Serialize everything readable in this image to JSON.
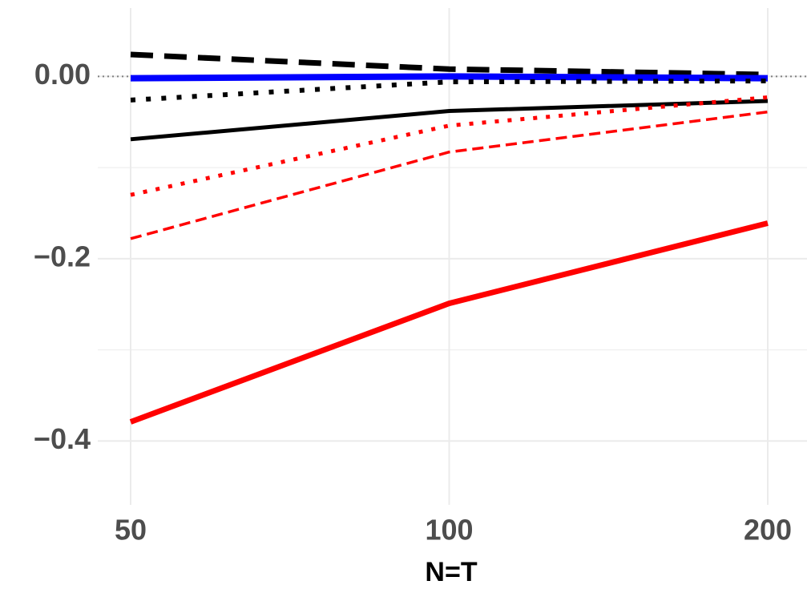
{
  "chart_data": {
    "type": "line",
    "x_label": "N=T",
    "categories": [
      "50",
      "100",
      "200"
    ],
    "ylim": [
      -0.47,
      0.075
    ],
    "yticks": [
      {
        "value": -0.4,
        "label": "−0.4"
      },
      {
        "value": -0.2,
        "label": "−0.2"
      },
      {
        "value": 0,
        "label": "0.00"
      }
    ],
    "y_minor_grid": [
      -0.3,
      -0.1
    ],
    "grid": true,
    "hline": 0,
    "series": [
      {
        "color": "#000000",
        "dash": "dashed",
        "width": 7,
        "values": [
          0.024,
          0.008,
          0.002
        ]
      },
      {
        "color": "#0000ff",
        "dash": "solid",
        "width": 8,
        "values": [
          -0.002,
          0.0,
          -0.002
        ]
      },
      {
        "color": "#000000",
        "dash": "dotted",
        "width": 6,
        "values": [
          -0.026,
          -0.006,
          -0.005
        ]
      },
      {
        "color": "#000000",
        "dash": "solid",
        "width": 5,
        "values": [
          -0.069,
          -0.038,
          -0.027
        ]
      },
      {
        "color": "#ff0000",
        "dash": "dotted",
        "width": 5,
        "values": [
          -0.13,
          -0.054,
          -0.023
        ]
      },
      {
        "color": "#ff0000",
        "dash": "dashed",
        "width": 3.5,
        "values": [
          -0.178,
          -0.083,
          -0.039
        ]
      },
      {
        "color": "#ff0000",
        "dash": "solid",
        "width": 7,
        "values": [
          -0.379,
          -0.249,
          -0.161
        ]
      }
    ]
  }
}
